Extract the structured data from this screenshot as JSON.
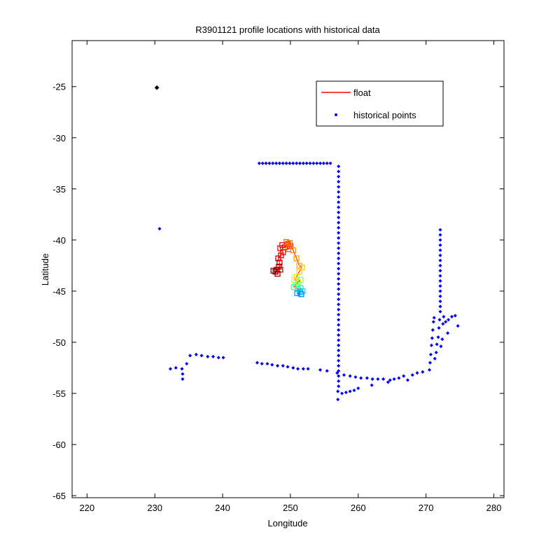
{
  "chart_data": {
    "type": "scatter",
    "title": "R3901121 profile locations with historical data",
    "xlabel": "Longitude",
    "ylabel": "Latitude",
    "xlim": [
      217.8,
      281.5
    ],
    "ylim": [
      -65.2,
      -20.5
    ],
    "xticks": [
      220,
      230,
      240,
      250,
      260,
      270,
      280
    ],
    "yticks": [
      -25,
      -30,
      -35,
      -40,
      -45,
      -50,
      -55,
      -60,
      -65
    ],
    "grid": false,
    "legend": {
      "placement": "top-right",
      "entries": [
        "float",
        "historical points"
      ]
    },
    "colors": {
      "float": "#ff0000",
      "historical": "#0000ff",
      "marker": "#000000"
    },
    "marker_point": {
      "x": 230.3,
      "y": -25.1
    },
    "series": [
      {
        "name": "historical points",
        "points": [
          [
            230.7,
            -38.9
          ],
          [
            232.3,
            -52.6
          ],
          [
            233.1,
            -52.5
          ],
          [
            234.0,
            -52.6
          ],
          [
            234.1,
            -53.1
          ],
          [
            234.1,
            -53.6
          ],
          [
            234.7,
            -52.1
          ],
          [
            235.2,
            -51.3
          ],
          [
            236.1,
            -51.2
          ],
          [
            236.9,
            -51.3
          ],
          [
            237.8,
            -51.4
          ],
          [
            238.6,
            -51.4
          ],
          [
            239.4,
            -51.5
          ],
          [
            240.1,
            -51.5
          ],
          [
            245.1,
            -52.0
          ],
          [
            245.8,
            -52.1
          ],
          [
            246.6,
            -52.1
          ],
          [
            247.3,
            -52.2
          ],
          [
            248.1,
            -52.3
          ],
          [
            248.9,
            -52.3
          ],
          [
            249.6,
            -52.4
          ],
          [
            250.4,
            -52.5
          ],
          [
            251.1,
            -52.6
          ],
          [
            251.9,
            -52.6
          ],
          [
            252.6,
            -52.6
          ],
          [
            254.4,
            -52.7
          ],
          [
            255.4,
            -52.8
          ],
          [
            256.9,
            -53.0
          ],
          [
            245.4,
            -32.5
          ],
          [
            245.9,
            -32.5
          ],
          [
            246.4,
            -32.5
          ],
          [
            246.9,
            -32.5
          ],
          [
            247.4,
            -32.5
          ],
          [
            247.9,
            -32.5
          ],
          [
            248.4,
            -32.5
          ],
          [
            248.9,
            -32.5
          ],
          [
            249.4,
            -32.5
          ],
          [
            249.9,
            -32.5
          ],
          [
            250.4,
            -32.5
          ],
          [
            250.9,
            -32.5
          ],
          [
            251.4,
            -32.5
          ],
          [
            251.9,
            -32.5
          ],
          [
            252.4,
            -32.5
          ],
          [
            252.9,
            -32.5
          ],
          [
            253.4,
            -32.5
          ],
          [
            253.9,
            -32.5
          ],
          [
            254.4,
            -32.5
          ],
          [
            254.9,
            -32.5
          ],
          [
            255.4,
            -32.5
          ],
          [
            255.9,
            -32.5
          ],
          [
            257.1,
            -32.8
          ],
          [
            257.1,
            -33.3
          ],
          [
            257.1,
            -33.8
          ],
          [
            257.1,
            -34.3
          ],
          [
            257.1,
            -34.8
          ],
          [
            257.1,
            -35.3
          ],
          [
            257.1,
            -35.8
          ],
          [
            257.1,
            -36.3
          ],
          [
            257.1,
            -36.8
          ],
          [
            257.1,
            -37.3
          ],
          [
            257.1,
            -37.8
          ],
          [
            257.1,
            -38.3
          ],
          [
            257.1,
            -38.8
          ],
          [
            257.1,
            -39.3
          ],
          [
            257.1,
            -39.8
          ],
          [
            257.1,
            -40.3
          ],
          [
            257.1,
            -40.8
          ],
          [
            257.1,
            -41.3
          ],
          [
            257.1,
            -41.8
          ],
          [
            257.1,
            -42.3
          ],
          [
            257.1,
            -42.8
          ],
          [
            257.1,
            -43.3
          ],
          [
            257.1,
            -43.8
          ],
          [
            257.1,
            -44.3
          ],
          [
            257.1,
            -44.8
          ],
          [
            257.1,
            -45.3
          ],
          [
            257.1,
            -45.8
          ],
          [
            257.1,
            -46.3
          ],
          [
            257.1,
            -46.8
          ],
          [
            257.1,
            -47.3
          ],
          [
            257.1,
            -47.8
          ],
          [
            257.1,
            -48.3
          ],
          [
            257.1,
            -48.8
          ],
          [
            257.1,
            -49.3
          ],
          [
            257.1,
            -49.8
          ],
          [
            257.1,
            -50.3
          ],
          [
            257.1,
            -50.8
          ],
          [
            257.1,
            -51.3
          ],
          [
            257.1,
            -51.8
          ],
          [
            257.1,
            -52.3
          ],
          [
            257.1,
            -52.8
          ],
          [
            257.1,
            -53.3
          ],
          [
            257.1,
            -53.8
          ],
          [
            257.1,
            -54.3
          ],
          [
            257.0,
            -54.8
          ],
          [
            257.0,
            -55.6
          ],
          [
            257.6,
            -55.0
          ],
          [
            258.2,
            -54.9
          ],
          [
            258.8,
            -54.8
          ],
          [
            259.4,
            -54.7
          ],
          [
            260.0,
            -54.5
          ],
          [
            257.9,
            -53.2
          ],
          [
            258.8,
            -53.3
          ],
          [
            259.6,
            -53.4
          ],
          [
            260.4,
            -53.5
          ],
          [
            261.3,
            -53.5
          ],
          [
            262.1,
            -53.6
          ],
          [
            262.9,
            -53.6
          ],
          [
            262.0,
            -54.2
          ],
          [
            263.7,
            -53.6
          ],
          [
            264.4,
            -53.9
          ],
          [
            264.7,
            -53.7
          ],
          [
            265.3,
            -53.6
          ],
          [
            266.0,
            -53.5
          ],
          [
            266.7,
            -53.3
          ],
          [
            267.3,
            -53.7
          ],
          [
            268.0,
            -53.2
          ],
          [
            268.7,
            -53.0
          ],
          [
            269.5,
            -52.9
          ],
          [
            270.5,
            -52.7
          ],
          [
            270.6,
            -52.0
          ],
          [
            270.7,
            -51.2
          ],
          [
            270.8,
            -50.3
          ],
          [
            270.9,
            -49.6
          ],
          [
            271.0,
            -48.8
          ],
          [
            271.1,
            -48.0
          ],
          [
            271.2,
            -47.6
          ],
          [
            271.3,
            -51.6
          ],
          [
            271.5,
            -51.0
          ],
          [
            271.6,
            -50.2
          ],
          [
            271.8,
            -49.5
          ],
          [
            271.9,
            -48.6
          ],
          [
            272.0,
            -47.8
          ],
          [
            272.2,
            -50.4
          ],
          [
            272.4,
            -49.7
          ],
          [
            272.5,
            -48.2
          ],
          [
            272.6,
            -47.5
          ],
          [
            272.9,
            -48.0
          ],
          [
            273.3,
            -47.8
          ],
          [
            273.8,
            -47.5
          ],
          [
            274.3,
            -47.4
          ],
          [
            274.7,
            -48.4
          ],
          [
            273.2,
            -49.1
          ],
          [
            272.1,
            -39.0
          ],
          [
            272.1,
            -39.5
          ],
          [
            272.1,
            -40.0
          ],
          [
            272.1,
            -40.5
          ],
          [
            272.1,
            -41.0
          ],
          [
            272.1,
            -41.5
          ],
          [
            272.1,
            -42.0
          ],
          [
            272.1,
            -42.5
          ],
          [
            272.1,
            -43.0
          ],
          [
            272.1,
            -43.5
          ],
          [
            272.1,
            -44.0
          ],
          [
            272.1,
            -44.5
          ],
          [
            272.1,
            -45.0
          ],
          [
            272.1,
            -45.5
          ],
          [
            272.1,
            -46.0
          ],
          [
            272.1,
            -46.5
          ],
          [
            272.1,
            -47.0
          ]
        ]
      },
      {
        "name": "float",
        "points": [
          [
            247.5,
            -43.0
          ],
          [
            247.8,
            -43.1
          ],
          [
            248.0,
            -42.9
          ],
          [
            248.1,
            -43.3
          ],
          [
            248.3,
            -42.6
          ],
          [
            248.5,
            -42.9
          ],
          [
            248.4,
            -42.2
          ],
          [
            248.2,
            -41.8
          ],
          [
            248.6,
            -41.5
          ],
          [
            248.9,
            -41.2
          ],
          [
            248.5,
            -40.8
          ],
          [
            248.8,
            -40.5
          ],
          [
            249.2,
            -40.7
          ],
          [
            249.6,
            -40.4
          ],
          [
            250.0,
            -40.6
          ],
          [
            249.7,
            -40.9
          ],
          [
            249.4,
            -40.2
          ],
          [
            249.9,
            -40.3
          ],
          [
            250.4,
            -41.0
          ],
          [
            250.9,
            -41.8
          ],
          [
            251.3,
            -42.5
          ],
          [
            251.7,
            -42.7
          ],
          [
            251.3,
            -43.1
          ],
          [
            250.9,
            -43.6
          ],
          [
            250.6,
            -43.9
          ],
          [
            251.1,
            -44.1
          ],
          [
            251.5,
            -43.9
          ],
          [
            250.8,
            -44.4
          ],
          [
            250.5,
            -44.6
          ],
          [
            251.1,
            -44.8
          ],
          [
            251.5,
            -44.7
          ],
          [
            251.8,
            -45.0
          ],
          [
            251.4,
            -45.1
          ],
          [
            251.0,
            -45.2
          ],
          [
            251.6,
            -45.3
          ]
        ],
        "point_colors": [
          "#800000",
          "#8b0000",
          "#990000",
          "#a30000",
          "#b00000",
          "#bc0000",
          "#c80000",
          "#d40000",
          "#e00000",
          "#ec0000",
          "#f50000",
          "#ff0000",
          "#ff1400",
          "#ff2800",
          "#ff3c00",
          "#ff5000",
          "#ff6400",
          "#ff7800",
          "#ff8c00",
          "#ffa000",
          "#ffb400",
          "#ffc800",
          "#ffdc00",
          "#f0f000",
          "#d0ff10",
          "#b0ff30",
          "#90ff50",
          "#70ff70",
          "#50ff90",
          "#30ffb0",
          "#10ffd0",
          "#00e0ff",
          "#00c0ff",
          "#00a0ff",
          "#0080ff"
        ]
      }
    ]
  }
}
